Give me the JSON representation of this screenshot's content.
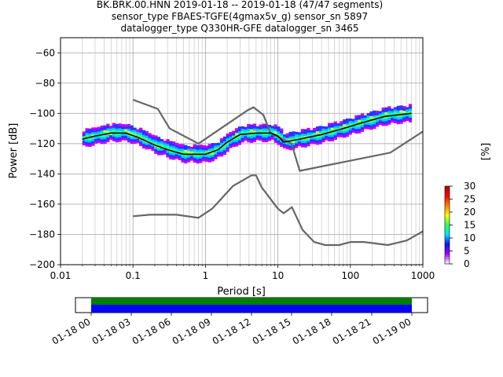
{
  "title_lines": [
    "BK.BRK.00.HNN   2019-01-18 -- 2019-01-18  (47/47 segments)",
    "sensor_type FBAES-TGFE(4gmax5v_g) sensor_sn 5897",
    "datalogger_type Q330HR-GFE datalogger_sn 3465"
  ],
  "chart_data": {
    "type": "heatmap",
    "xlabel": "Period [s]",
    "ylabel": "Power [dB]",
    "x_scale": "log",
    "xlim": [
      0.01,
      1000
    ],
    "ylim": [
      -200,
      -50
    ],
    "x_ticks": [
      0.01,
      0.1,
      1,
      10,
      100,
      1000
    ],
    "x_tick_labels": [
      "0.01",
      "0.1",
      "1",
      "10",
      "100",
      "1000"
    ],
    "y_ticks": [
      -200,
      -180,
      -160,
      -140,
      -120,
      -100,
      -80,
      -60
    ],
    "y_tick_labels": [
      "−200",
      "−180",
      "−160",
      "−140",
      "−120",
      "−100",
      "−80",
      "−60"
    ],
    "grid": true,
    "colorbar": {
      "label": "[%]",
      "ticks": [
        0,
        5,
        10,
        15,
        20,
        25,
        30
      ],
      "tick_labels": [
        "0",
        "5",
        "10",
        "15",
        "20",
        "25",
        "30"
      ],
      "range": [
        0,
        30
      ],
      "colors": [
        "#ffffff",
        "#b000ff",
        "#1010ff",
        "#00e0ff",
        "#30ff60",
        "#ffff00",
        "#ff8000",
        "#ff0000",
        "#b00000"
      ]
    },
    "mean_curve": [
      [
        0.02,
        -117
      ],
      [
        0.03,
        -115
      ],
      [
        0.05,
        -113
      ],
      [
        0.08,
        -113
      ],
      [
        0.12,
        -116
      ],
      [
        0.2,
        -121
      ],
      [
        0.3,
        -124
      ],
      [
        0.5,
        -127
      ],
      [
        1.0,
        -127
      ],
      [
        1.5,
        -124
      ],
      [
        2.0,
        -119
      ],
      [
        3.0,
        -114
      ],
      [
        5.0,
        -113
      ],
      [
        8.0,
        -113
      ],
      [
        10.0,
        -115
      ],
      [
        12.0,
        -119
      ],
      [
        20.0,
        -117
      ],
      [
        40.0,
        -114
      ],
      [
        80.0,
        -110
      ],
      [
        150.0,
        -106
      ],
      [
        300.0,
        -102
      ],
      [
        700.0,
        -100
      ]
    ],
    "nlnm": [
      [
        0.1,
        -168
      ],
      [
        0.17,
        -167
      ],
      [
        0.4,
        -167
      ],
      [
        0.8,
        -169
      ],
      [
        1.24,
        -163
      ],
      [
        2.4,
        -148
      ],
      [
        4.3,
        -141
      ],
      [
        5.0,
        -141
      ],
      [
        6.0,
        -149
      ],
      [
        10.0,
        -163
      ],
      [
        12.0,
        -166
      ],
      [
        15.6,
        -162
      ],
      [
        21.9,
        -177
      ],
      [
        31.6,
        -185
      ],
      [
        45.0,
        -187
      ],
      [
        70.0,
        -187
      ],
      [
        101,
        -185
      ],
      [
        154,
        -185
      ],
      [
        328,
        -187
      ],
      [
        600,
        -184
      ],
      [
        1000,
        -178
      ]
    ],
    "nhnm": [
      [
        0.1,
        -91
      ],
      [
        0.22,
        -97
      ],
      [
        0.32,
        -110
      ],
      [
        0.8,
        -120
      ],
      [
        3.8,
        -98
      ],
      [
        4.6,
        -96
      ],
      [
        6.3,
        -101
      ],
      [
        7.9,
        -113
      ],
      [
        15.4,
        -120
      ],
      [
        20.0,
        -138
      ],
      [
        354.8,
        -126
      ],
      [
        1000,
        -112
      ]
    ]
  },
  "time_bar": {
    "tick_labels": [
      "01-18 00",
      "01-18 03",
      "01-18 06",
      "01-18 09",
      "01-18 12",
      "01-18 15",
      "01-18 18",
      "01-18 21",
      "01-19 00"
    ],
    "colors": {
      "top": "#008000",
      "bottom": "#0000ff"
    }
  }
}
